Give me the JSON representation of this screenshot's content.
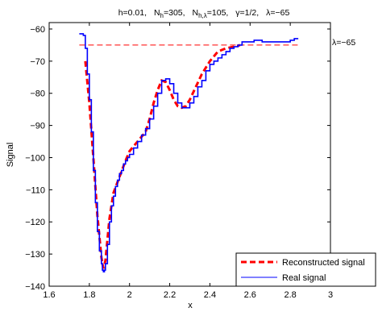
{
  "chart_data": {
    "type": "line",
    "title_parts": {
      "h": "h=0.01,",
      "nh_main": "N",
      "nh_sub": "h",
      "nh_val": "=305,",
      "nhl_main": "N",
      "nhl_sub": "h,λ",
      "nhl_val": "=105,",
      "gamma": "γ=1/2,",
      "lambda": "λ=−65"
    },
    "xlabel": "x",
    "ylabel": "Signal",
    "xlim": [
      1.6,
      3.0
    ],
    "ylim": [
      -140,
      -58
    ],
    "xticks": [
      1.6,
      1.8,
      2.0,
      2.2,
      2.4,
      2.6,
      2.8,
      3.0
    ],
    "xtick_labels": [
      "1.6",
      "1.8",
      "2",
      "2.2",
      "2.4",
      "2.6",
      "2.8",
      "3"
    ],
    "yticks": [
      -140,
      -130,
      -120,
      -110,
      -100,
      -90,
      -80,
      -70,
      -60
    ],
    "ytick_labels": [
      "−140",
      "−130",
      "−120",
      "−110",
      "−100",
      "−90",
      "−80",
      "−70",
      "−60"
    ],
    "threshold": {
      "value": -65,
      "x_range": [
        1.75,
        2.84
      ],
      "label": "λ=−65",
      "color": "#ff0000"
    },
    "series": [
      {
        "name": "Reconstructed signal",
        "color": "#ff0000",
        "style": "dashed",
        "x": [
          1.78,
          1.8,
          1.82,
          1.84,
          1.86,
          1.87,
          1.88,
          1.9,
          1.92,
          1.95,
          1.98,
          2.0,
          2.04,
          2.08,
          2.1,
          2.12,
          2.14,
          2.16,
          2.18,
          2.2,
          2.22,
          2.24,
          2.26,
          2.28,
          2.3,
          2.33,
          2.36,
          2.4,
          2.44,
          2.48,
          2.52,
          2.55
        ],
        "y": [
          -70,
          -83,
          -100,
          -118,
          -131,
          -134.5,
          -132,
          -119,
          -111,
          -106,
          -101,
          -98,
          -95,
          -92,
          -88,
          -83,
          -79,
          -76,
          -76.5,
          -79,
          -82,
          -84,
          -84.5,
          -84,
          -82,
          -78,
          -74,
          -70,
          -67,
          -66,
          -65.5,
          -65
        ]
      },
      {
        "name": "Real signal",
        "color": "#0000ff",
        "style": "solid",
        "x": [
          1.75,
          1.76,
          1.77,
          1.78,
          1.79,
          1.8,
          1.81,
          1.82,
          1.83,
          1.84,
          1.85,
          1.86,
          1.865,
          1.87,
          1.875,
          1.88,
          1.89,
          1.9,
          1.91,
          1.92,
          1.93,
          1.94,
          1.95,
          1.96,
          1.97,
          1.98,
          1.99,
          2.0,
          2.02,
          2.04,
          2.06,
          2.08,
          2.1,
          2.12,
          2.14,
          2.16,
          2.18,
          2.2,
          2.22,
          2.24,
          2.26,
          2.28,
          2.3,
          2.32,
          2.34,
          2.36,
          2.38,
          2.4,
          2.42,
          2.44,
          2.46,
          2.48,
          2.5,
          2.52,
          2.54,
          2.56,
          2.58,
          2.6,
          2.62,
          2.64,
          2.66,
          2.68,
          2.7,
          2.72,
          2.74,
          2.76,
          2.78,
          2.8,
          2.82,
          2.84
        ],
        "y": [
          -61.5,
          -61.5,
          -62,
          -66,
          -74,
          -82,
          -92,
          -104,
          -114,
          -123,
          -129,
          -133,
          -135,
          -135.5,
          -135,
          -133,
          -127,
          -120,
          -115,
          -112,
          -109,
          -107,
          -105,
          -104,
          -102,
          -101,
          -100,
          -99,
          -97,
          -95,
          -93,
          -91,
          -88,
          -84,
          -80,
          -76,
          -75.5,
          -77,
          -80,
          -83,
          -84.5,
          -84.5,
          -83,
          -81,
          -78,
          -76,
          -73,
          -71,
          -70,
          -69,
          -68,
          -67,
          -66,
          -65.5,
          -65,
          -64,
          -64,
          -64,
          -63.5,
          -63.5,
          -64,
          -64,
          -64,
          -64,
          -64,
          -64,
          -64,
          -63.5,
          -63,
          -63
        ]
      }
    ],
    "legend": {
      "position": "bottom-right",
      "entries": [
        "Reconstructed signal",
        "Real signal"
      ]
    }
  }
}
